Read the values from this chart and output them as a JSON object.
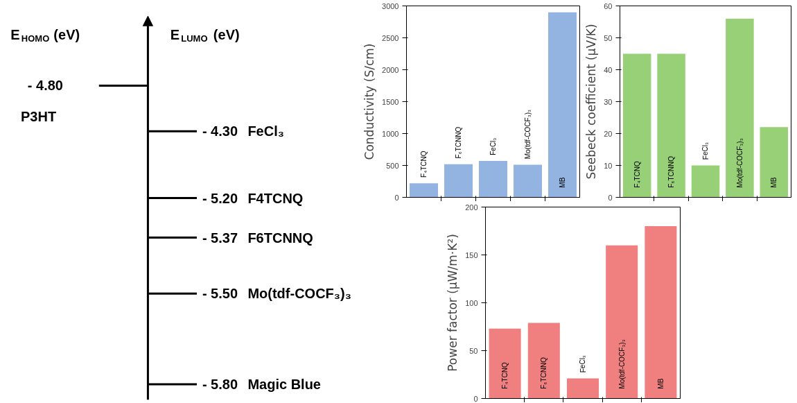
{
  "chart_data": [
    {
      "type": "other",
      "annotations": [
        "E$_{HOMO}$ (eV)",
        "E$_{LUMO}$ (eV)"
      ],
      "categories": [
        "P3HT",
        "FeCl₃",
        "F4TCNQ",
        "F6TCNNQ",
        "Mo(tdf-COCF₃)₃",
        "Magic Blue"
      ],
      "values": [
        -4.8,
        -4.3,
        -5.2,
        -5.37,
        -5.5,
        -5.8
      ],
      "value_labels": [
        "- 4.80",
        "- 4.30",
        "- 5.20",
        "- 5.37",
        "- 5.50",
        "- 5.80"
      ]
    },
    {
      "type": "bar",
      "ylabel": "Conductivity (S/cm)",
      "categories": [
        "F₄TCNQ",
        "F₆TCNNQ",
        "FeCl₃",
        "Mo(tdf-COCF₃)₃",
        "MB"
      ],
      "values": [
        220,
        520,
        570,
        510,
        2900
      ],
      "color": "#93b3e0",
      "ylim": [
        0,
        3000
      ],
      "yticks": [
        0,
        500,
        1000,
        1500,
        2000,
        2500,
        3000
      ],
      "tick_labels": "y"
    },
    {
      "type": "bar",
      "ylabel": "Seebeck coefficient (μV/K)",
      "categories": [
        "F₄TCNQ",
        "F₆TCNNQ",
        "FeCl₃",
        "Mo(tdf-COCF₃)₃",
        "MB"
      ],
      "values": [
        45,
        45,
        10,
        56,
        22
      ],
      "color": "#97d077",
      "ylim": [
        0,
        60
      ],
      "yticks": [
        0,
        10,
        20,
        30,
        40,
        50,
        60
      ],
      "tick_labels": "y"
    },
    {
      "type": "bar",
      "ylabel": "Power factor (μW/m·K²)",
      "categories": [
        "F₄TCNQ",
        "F₆TCNNQ",
        "FeCl₃",
        "Mo(tdf-COCF₃)₃",
        "MB"
      ],
      "values": [
        73,
        79,
        21,
        160,
        180
      ],
      "color": "#f08080",
      "ylim": [
        0,
        200
      ],
      "yticks": [
        0,
        50,
        100,
        150,
        200
      ],
      "tick_labels": "y"
    }
  ]
}
